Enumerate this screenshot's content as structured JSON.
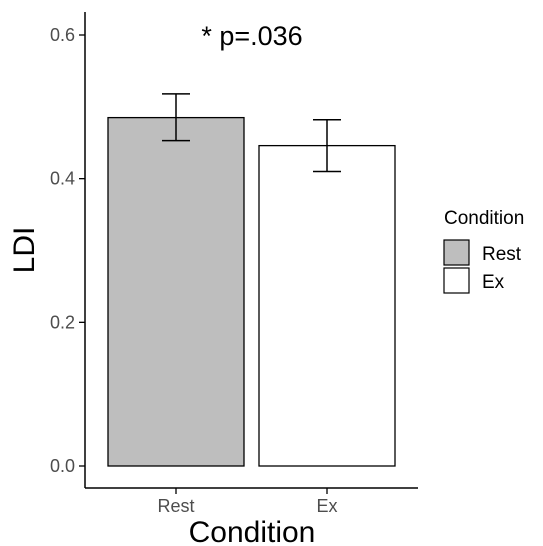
{
  "chart_data": {
    "type": "bar",
    "categories": [
      "Rest",
      "Ex"
    ],
    "values": [
      0.485,
      0.446
    ],
    "errors": [
      {
        "low": 0.453,
        "high": 0.518
      },
      {
        "low": 0.41,
        "high": 0.482
      }
    ],
    "fills": [
      "#bebebe",
      "#ffffff"
    ],
    "xlabel": "Condition",
    "ylabel": "LDI",
    "ylim": [
      0,
      0.63
    ],
    "yticks": [
      0.0,
      0.2,
      0.4,
      0.6
    ],
    "ytick_labels": [
      "0.0",
      "0.2",
      "0.4",
      "0.6"
    ],
    "annotation": "* p=.036",
    "grid": false,
    "legend": {
      "title": "Condition",
      "placement": "right",
      "entries": [
        {
          "label": "Rest",
          "color": "#bebebe"
        },
        {
          "label": "Ex",
          "color": "#ffffff"
        }
      ]
    }
  }
}
